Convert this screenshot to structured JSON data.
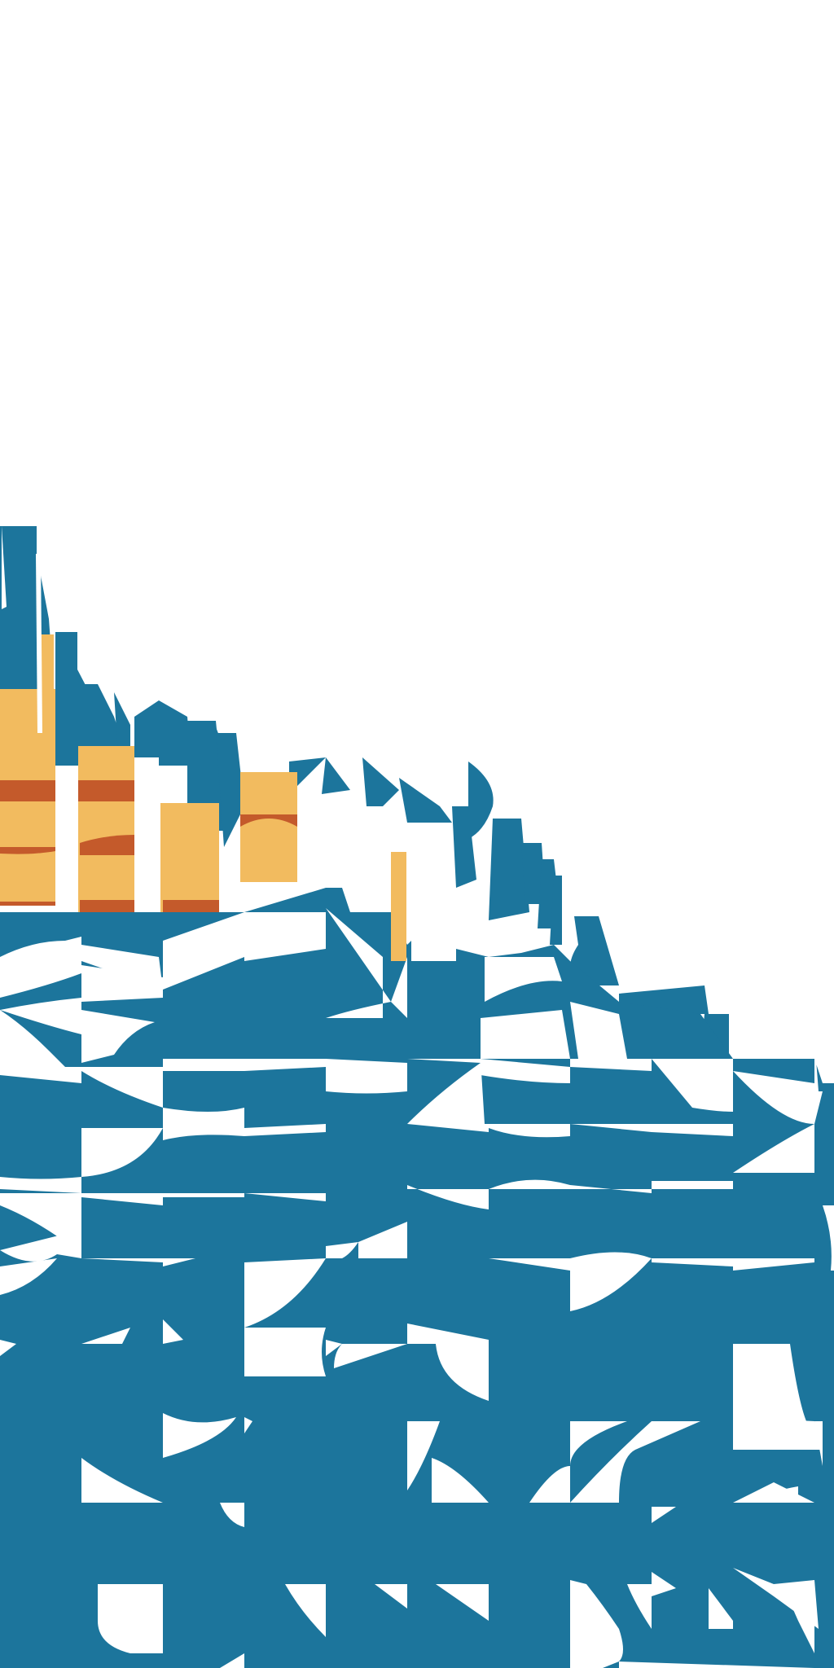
{
  "artwork": {
    "description_text": "",
    "colors": {
      "background": "#ffffff",
      "primary_blue": "#1c759c",
      "accent_yellow": "#f2bb5f",
      "accent_orange": "#c45a2b"
    }
  }
}
